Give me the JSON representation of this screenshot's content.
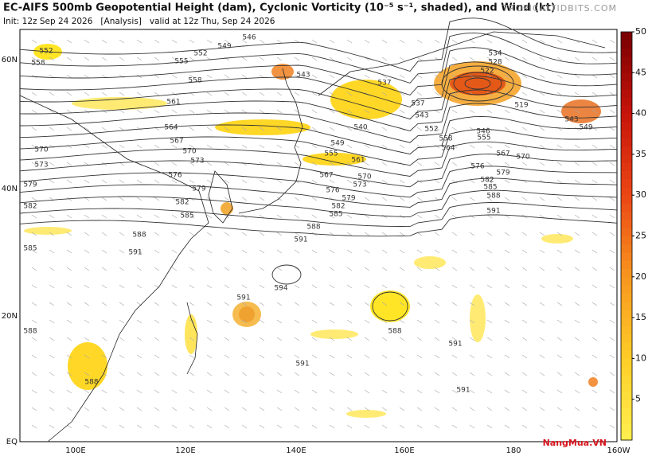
{
  "header": {
    "title": "EC-AIFS 500mb Geopotential Height (dam), Cyclonic Vorticity (10⁻⁵ s⁻¹, shaded), and Wind (kt)",
    "subtitle": "Init: 12z Sep 24 2026   [Analysis]   valid at 12z Thu, Sep 24 2026",
    "site": "TROPICALTIDBITS.COM"
  },
  "map": {
    "lat_labels": [
      "60N",
      "40N",
      "20N",
      "EQ"
    ],
    "lon_labels": [
      "100E",
      "120E",
      "140E",
      "160E",
      "180",
      "160W"
    ],
    "contour_labels": [
      546,
      549,
      552,
      552,
      555,
      558,
      558,
      561,
      564,
      567,
      570,
      570,
      573,
      573,
      576,
      579,
      579,
      582,
      582,
      585,
      588,
      591,
      585,
      588,
      588,
      543,
      537,
      534,
      528,
      522,
      519,
      537,
      543,
      552,
      558,
      564,
      561,
      567,
      570,
      573,
      576,
      579,
      582,
      585,
      588,
      591,
      594,
      591,
      588,
      591,
      591,
      591,
      555,
      540,
      549,
      546,
      555,
      576,
      579,
      582,
      585,
      588,
      591,
      570,
      543,
      549,
      567
    ]
  },
  "colorbar": {
    "range": [
      0,
      50
    ],
    "ticks": [
      5,
      10,
      15,
      20,
      25,
      30,
      35,
      40,
      45,
      50
    ]
  },
  "watermark": "NangMua.VN"
}
